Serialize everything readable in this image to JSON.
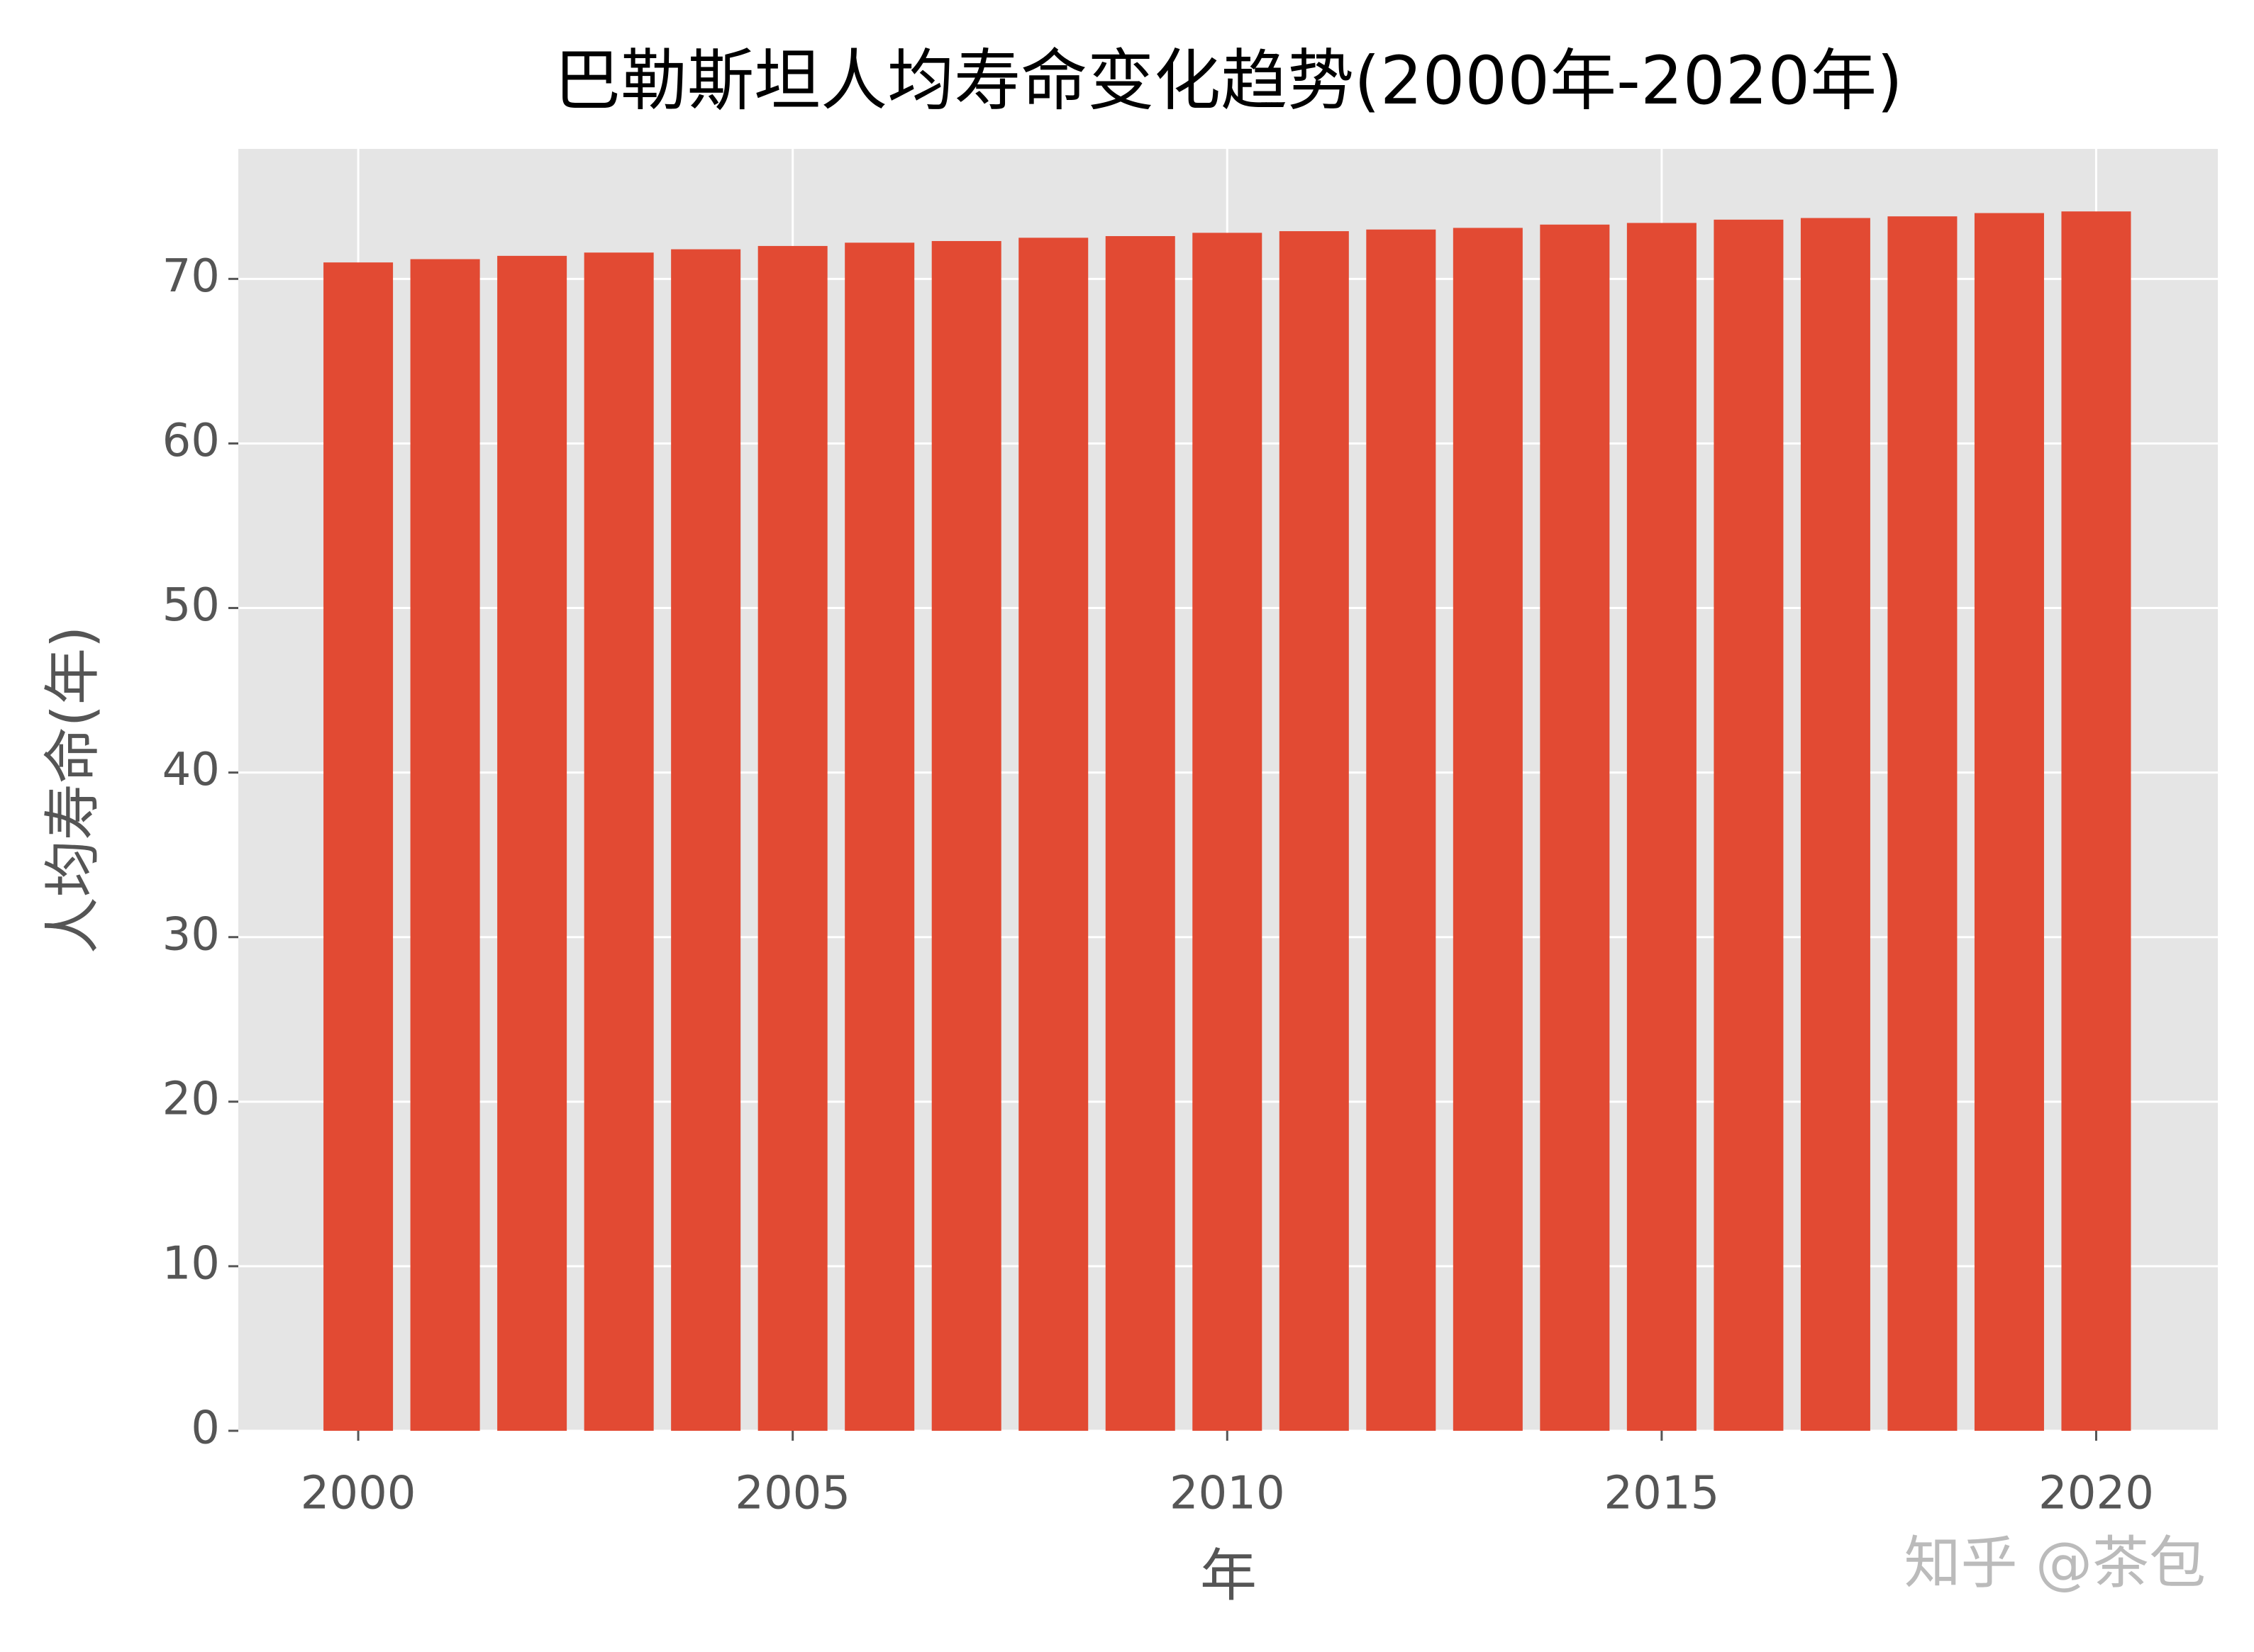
{
  "chart_data": {
    "type": "bar",
    "title": "巴勒斯坦人均寿命变化趋势(2000年-2020年)",
    "x_label": "年",
    "y_label": "人均寿命(年)",
    "watermark": "知乎 @茶包",
    "x": [
      2000,
      2001,
      2002,
      2003,
      2004,
      2005,
      2006,
      2007,
      2008,
      2009,
      2010,
      2011,
      2012,
      2013,
      2014,
      2015,
      2016,
      2017,
      2018,
      2019,
      2020
    ],
    "values": [
      71.0,
      71.2,
      71.4,
      71.6,
      71.8,
      72.0,
      72.2,
      72.3,
      72.5,
      72.6,
      72.8,
      72.9,
      73.0,
      73.1,
      73.3,
      73.4,
      73.6,
      73.7,
      73.8,
      74.0,
      74.1
    ],
    "color": "#e24a33",
    "xlim": [
      1998.62,
      2021.4
    ],
    "xticks": [
      2000,
      2005,
      2010,
      2015,
      2020
    ],
    "ylim": [
      0,
      77.9
    ],
    "yticks": [
      0,
      10,
      20,
      30,
      40,
      50,
      60,
      70
    ],
    "grid": true
  }
}
